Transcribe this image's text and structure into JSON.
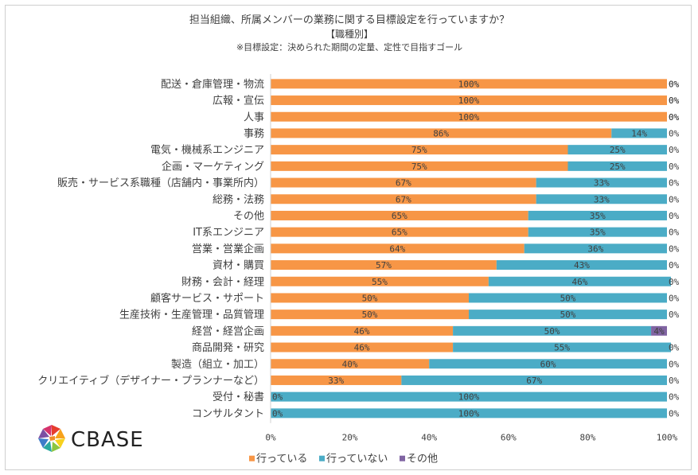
{
  "chart_data": {
    "type": "bar",
    "orientation": "horizontal",
    "stacked": true,
    "title": "担当組織、所属メンバーの業務に関する目標設定を行っていますか？",
    "subtitle": "【職種別】",
    "note": "※目標設定：決められた期間の定量、定性で目指すゴール",
    "categories": [
      "配送・倉庫管理・物流",
      "広報・宣伝",
      "人事",
      "事務",
      "電気・機械系エンジニア",
      "企画・マーケティング",
      "販売・サービス系職種（店舗内・事業所内）",
      "総務・法務",
      "その他",
      "IT系エンジニア",
      "営業・営業企画",
      "資材・購買",
      "財務・会計・経理",
      "顧客サービス・サポート",
      "生産技術・生産管理・品質管理",
      "経営・経営企画",
      "商品開発・研究",
      "製造（組立・加工）",
      "クリエイティブ（デザイナー・プランナーなど）",
      "受付・秘書",
      "コンサルタント"
    ],
    "series": [
      {
        "name": "行っている",
        "color": "#f79646",
        "values": [
          100,
          100,
          100,
          86,
          75,
          75,
          67,
          67,
          65,
          65,
          64,
          57,
          55,
          50,
          50,
          46,
          46,
          40,
          33,
          0,
          0
        ]
      },
      {
        "name": "行っていない",
        "color": "#4bacc6",
        "values": [
          0,
          0,
          0,
          14,
          25,
          25,
          33,
          33,
          35,
          35,
          36,
          43,
          46,
          50,
          50,
          50,
          55,
          60,
          67,
          100,
          100
        ]
      },
      {
        "name": "その他",
        "color": "#8064a2",
        "values": [
          0,
          0,
          0,
          0,
          0,
          0,
          0,
          0,
          0,
          0,
          0,
          0,
          0,
          0,
          0,
          4,
          0,
          0,
          0,
          0,
          0
        ]
      }
    ],
    "labels": [
      [
        "100%",
        "0%",
        "0%"
      ],
      [
        "100%",
        "0%",
        "0%"
      ],
      [
        "100%",
        "0%",
        "0%"
      ],
      [
        "86%",
        "14%",
        "0%"
      ],
      [
        "75%",
        "25%",
        "0%"
      ],
      [
        "75%",
        "25%",
        "0%"
      ],
      [
        "67%",
        "33%",
        "0%"
      ],
      [
        "67%",
        "33%",
        "0%"
      ],
      [
        "65%",
        "35%",
        "0%"
      ],
      [
        "65%",
        "35%",
        "0%"
      ],
      [
        "64%",
        "36%",
        "0%"
      ],
      [
        "57%",
        "43%",
        "0%"
      ],
      [
        "55%",
        "46%",
        "0%"
      ],
      [
        "50%",
        "50%",
        "0%"
      ],
      [
        "50%",
        "50%",
        "0%"
      ],
      [
        "46%",
        "50%",
        "4%"
      ],
      [
        "46%",
        "55%",
        "0%"
      ],
      [
        "40%",
        "60%",
        "0%"
      ],
      [
        "33%",
        "67%",
        "0%"
      ],
      [
        "0%",
        "100%",
        "0%"
      ],
      [
        "0%",
        "100%",
        "0%"
      ]
    ],
    "xticks": [
      "0%",
      "20%",
      "40%",
      "60%",
      "80%",
      "100%"
    ],
    "xlim": [
      0,
      100
    ],
    "legend_position": "bottom",
    "grid": false
  },
  "brand": {
    "name": "CBASE"
  }
}
